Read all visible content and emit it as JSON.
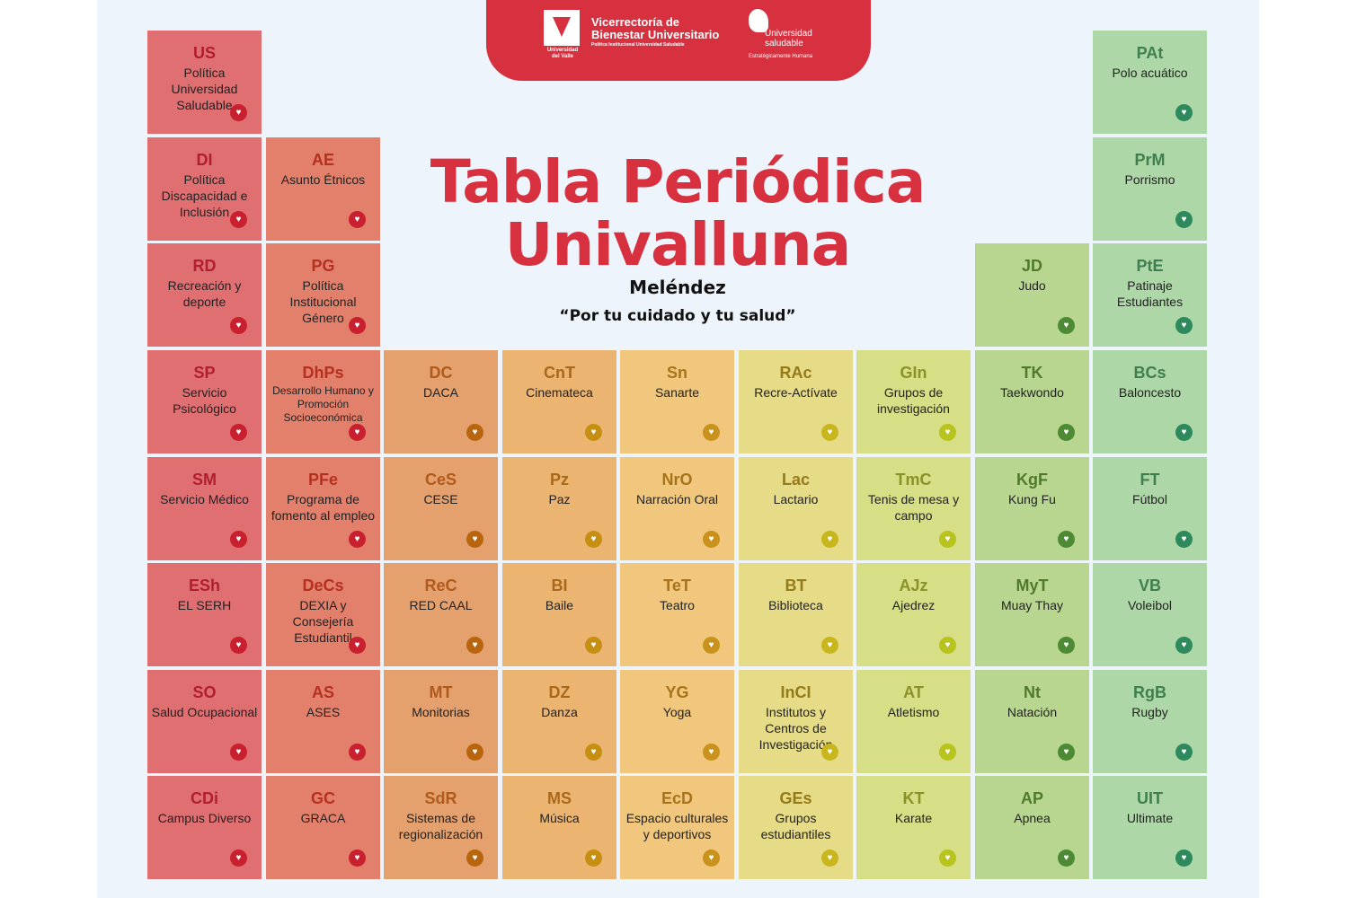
{
  "header": {
    "vicerrectoria": "Vicerrectoría de Bienestar Universitario",
    "vicerrectoria_sub": "Política Institucional Universidad Saludable",
    "uv_logo_text": "Universidad del Valle",
    "us_logo_text": "Universidad saludable",
    "us_logo_tag": "Estratégicamente Humana"
  },
  "title_line1": "Tabla Periódica",
  "title_line2": "Univalluna",
  "subtitle": "Meléndez",
  "slogan": "“Por tu cuidado y tu salud”",
  "colors": {
    "c1": "#e06f72",
    "c2": "#e3806b",
    "c3": "#e4a06d",
    "c4": "#ecb471",
    "c5": "#f0c77c",
    "c6": "#e6db86",
    "c7": "#d6de86",
    "c8": "#b9d690",
    "c9": "#aed7a7",
    "title_red": "#d7303f"
  },
  "elements": [
    {
      "col": 1,
      "row": 1,
      "symbol": "US",
      "name": "Política Universidad Saludable"
    },
    {
      "col": 1,
      "row": 2,
      "symbol": "DI",
      "name": "Política Discapacidad e Inclusión"
    },
    {
      "col": 1,
      "row": 3,
      "symbol": "RD",
      "name": "Recreación y deporte"
    },
    {
      "col": 1,
      "row": 4,
      "symbol": "SP",
      "name": "Servicio Psicológico"
    },
    {
      "col": 1,
      "row": 5,
      "symbol": "SM",
      "name": "Servicio Médico"
    },
    {
      "col": 1,
      "row": 6,
      "symbol": "ESh",
      "name": "EL SERH"
    },
    {
      "col": 1,
      "row": 7,
      "symbol": "SO",
      "name": "Salud Ocupacional"
    },
    {
      "col": 1,
      "row": 8,
      "symbol": "CDi",
      "name": "Campus Diverso"
    },
    {
      "col": 2,
      "row": 2,
      "symbol": "AE",
      "name": "Asunto Étnicos"
    },
    {
      "col": 2,
      "row": 3,
      "symbol": "PG",
      "name": "Política Institucional Género"
    },
    {
      "col": 2,
      "row": 4,
      "symbol": "DhPs",
      "name": "Desarrollo Humano y Promoción Socioeconómica",
      "small": true
    },
    {
      "col": 2,
      "row": 5,
      "symbol": "PFe",
      "name": "Programa de fomento al empleo"
    },
    {
      "col": 2,
      "row": 6,
      "symbol": "DeCs",
      "name": "DEXIA y Consejería Estudiantil"
    },
    {
      "col": 2,
      "row": 7,
      "symbol": "AS",
      "name": "ASES"
    },
    {
      "col": 2,
      "row": 8,
      "symbol": "GC",
      "name": "GRACA"
    },
    {
      "col": 3,
      "row": 4,
      "symbol": "DC",
      "name": "DACA"
    },
    {
      "col": 3,
      "row": 5,
      "symbol": "CeS",
      "name": "CESE"
    },
    {
      "col": 3,
      "row": 6,
      "symbol": "ReC",
      "name": "RED CAAL"
    },
    {
      "col": 3,
      "row": 7,
      "symbol": "MT",
      "name": "Monitorias"
    },
    {
      "col": 3,
      "row": 8,
      "symbol": "SdR",
      "name": "Sistemas de regionalización"
    },
    {
      "col": 4,
      "row": 4,
      "symbol": "CnT",
      "name": "Cinemateca"
    },
    {
      "col": 4,
      "row": 5,
      "symbol": "Pz",
      "name": "Paz"
    },
    {
      "col": 4,
      "row": 6,
      "symbol": "BI",
      "name": "Baile"
    },
    {
      "col": 4,
      "row": 7,
      "symbol": "DZ",
      "name": "Danza"
    },
    {
      "col": 4,
      "row": 8,
      "symbol": "MS",
      "name": "Música"
    },
    {
      "col": 5,
      "row": 4,
      "symbol": "Sn",
      "name": "Sanarte"
    },
    {
      "col": 5,
      "row": 5,
      "symbol": "NrO",
      "name": "Narración Oral"
    },
    {
      "col": 5,
      "row": 6,
      "symbol": "TeT",
      "name": "Teatro"
    },
    {
      "col": 5,
      "row": 7,
      "symbol": "YG",
      "name": "Yoga"
    },
    {
      "col": 5,
      "row": 8,
      "symbol": "EcD",
      "name": "Espacio culturales y deportivos"
    },
    {
      "col": 6,
      "row": 4,
      "symbol": "RAc",
      "name": "Recre-Actívate"
    },
    {
      "col": 6,
      "row": 5,
      "symbol": "Lac",
      "name": "Lactario"
    },
    {
      "col": 6,
      "row": 6,
      "symbol": "BT",
      "name": "Biblioteca"
    },
    {
      "col": 6,
      "row": 7,
      "symbol": "InCI",
      "name": "Institutos y Centros de Investigación"
    },
    {
      "col": 6,
      "row": 8,
      "symbol": "GEs",
      "name": "Grupos estudiantiles"
    },
    {
      "col": 7,
      "row": 4,
      "symbol": "GIn",
      "name": "Grupos de investigación"
    },
    {
      "col": 7,
      "row": 5,
      "symbol": "TmC",
      "name": "Tenis de mesa y campo"
    },
    {
      "col": 7,
      "row": 6,
      "symbol": "AJz",
      "name": "Ajedrez"
    },
    {
      "col": 7,
      "row": 7,
      "symbol": "AT",
      "name": "Atletismo"
    },
    {
      "col": 7,
      "row": 8,
      "symbol": "KT",
      "name": "Karate"
    },
    {
      "col": 8,
      "row": 3,
      "symbol": "JD",
      "name": "Judo"
    },
    {
      "col": 8,
      "row": 4,
      "symbol": "TK",
      "name": "Taekwondo"
    },
    {
      "col": 8,
      "row": 5,
      "symbol": "KgF",
      "name": "Kung Fu"
    },
    {
      "col": 8,
      "row": 6,
      "symbol": "MyT",
      "name": "Muay Thay"
    },
    {
      "col": 8,
      "row": 7,
      "symbol": "Nt",
      "name": "Natación"
    },
    {
      "col": 8,
      "row": 8,
      "symbol": "AP",
      "name": "Apnea"
    },
    {
      "col": 9,
      "row": 1,
      "symbol": "PAt",
      "name": "Polo acuático"
    },
    {
      "col": 9,
      "row": 2,
      "symbol": "PrM",
      "name": "Porrismo"
    },
    {
      "col": 9,
      "row": 3,
      "symbol": "PtE",
      "name": "Patinaje Estudiantes"
    },
    {
      "col": 9,
      "row": 4,
      "symbol": "BCs",
      "name": "Baloncesto"
    },
    {
      "col": 9,
      "row": 5,
      "symbol": "FT",
      "name": "Fútbol"
    },
    {
      "col": 9,
      "row": 6,
      "symbol": "VB",
      "name": "Voleibol"
    },
    {
      "col": 9,
      "row": 7,
      "symbol": "RgB",
      "name": "Rugby"
    },
    {
      "col": 9,
      "row": 8,
      "symbol": "UIT",
      "name": "Ultimate"
    }
  ]
}
